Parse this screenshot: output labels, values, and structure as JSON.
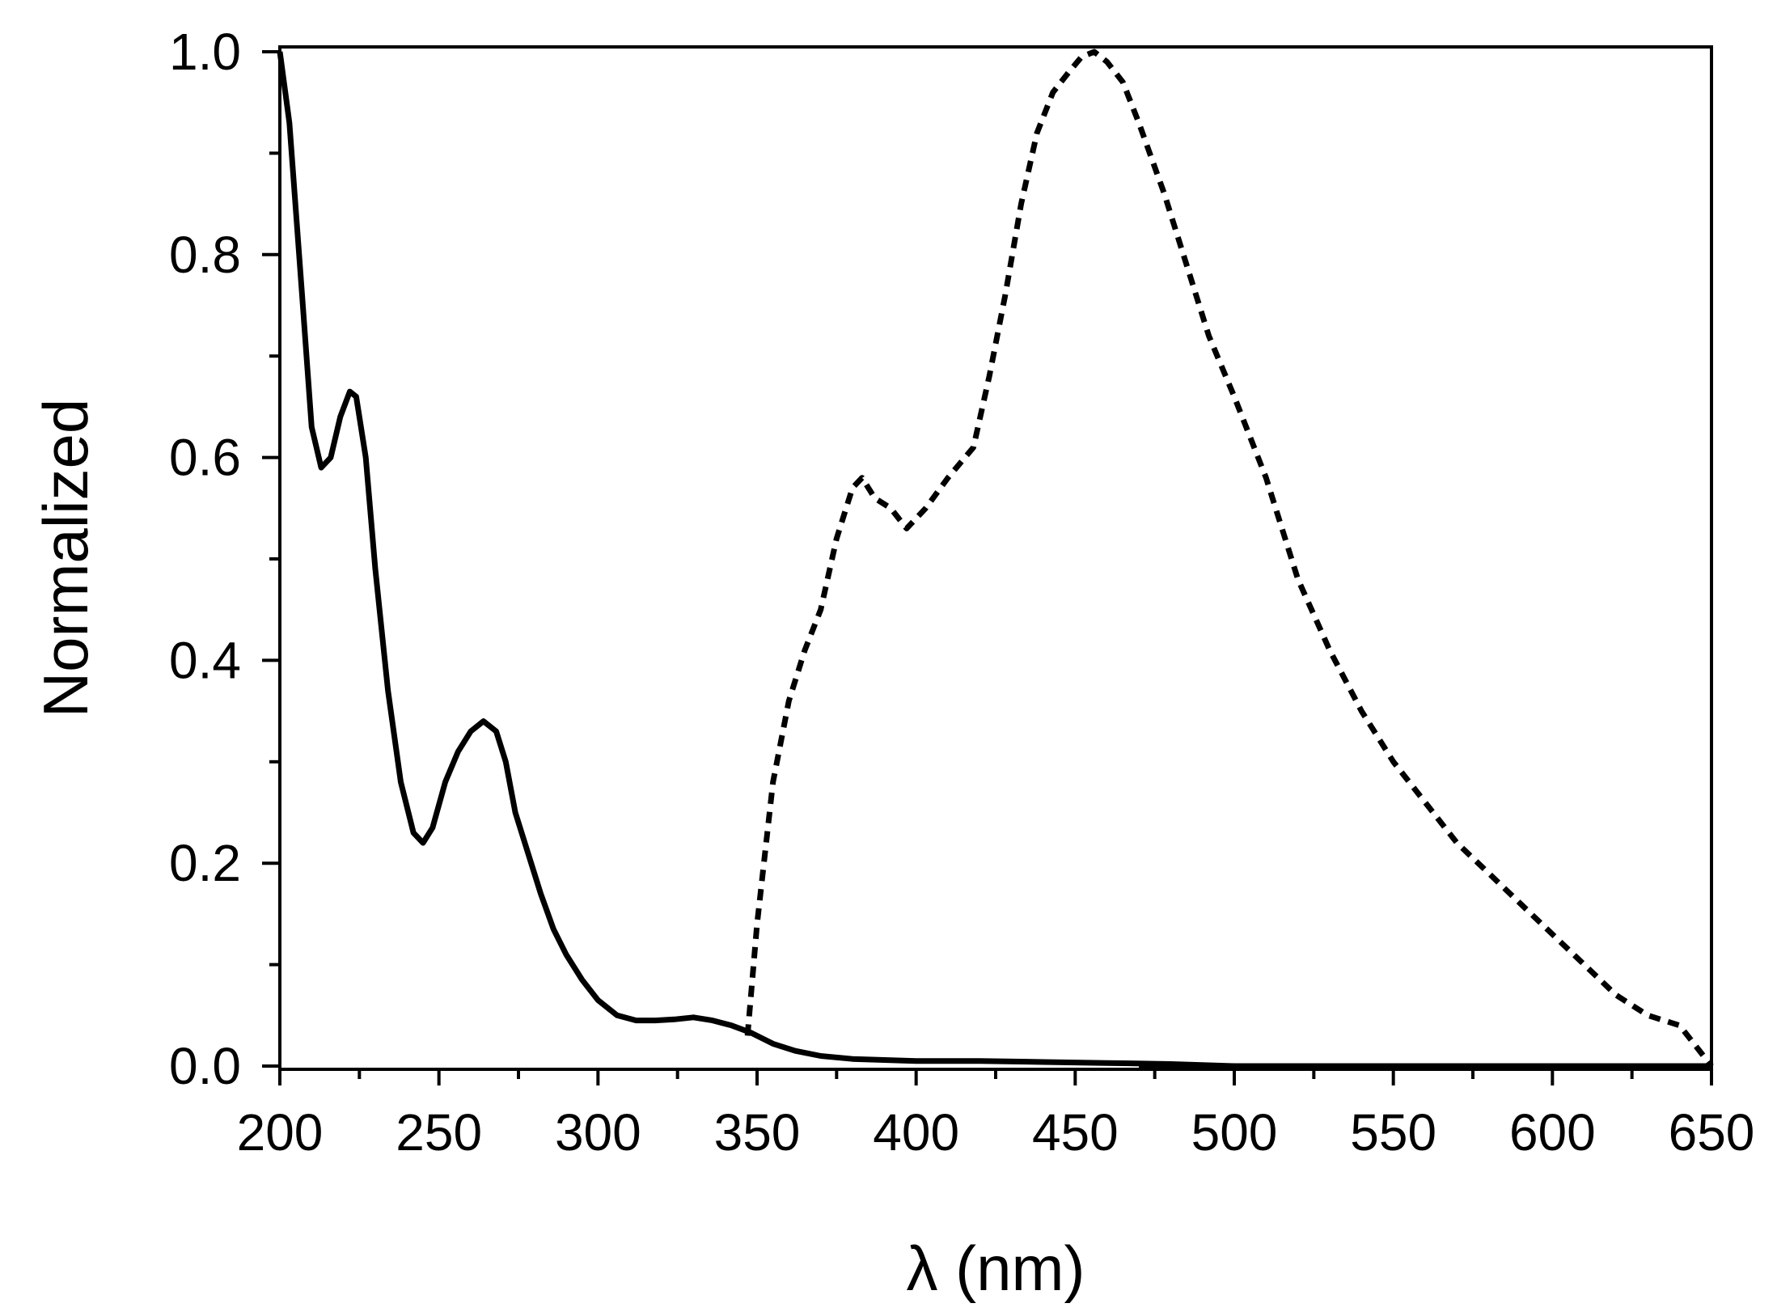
{
  "chart_data": {
    "type": "line",
    "title": "",
    "xlabel": "λ (nm)",
    "ylabel": "Normalized",
    "xlim": [
      200,
      650
    ],
    "ylim": [
      0.0,
      1.0
    ],
    "xticks": [
      200,
      250,
      300,
      350,
      400,
      450,
      500,
      550,
      600,
      650
    ],
    "yticks": [
      0.0,
      0.2,
      0.4,
      0.6,
      0.8,
      1.0
    ],
    "xtick_labels": [
      "200",
      "250",
      "300",
      "350",
      "400",
      "450",
      "500",
      "550",
      "600",
      "650"
    ],
    "ytick_labels": [
      "0.0",
      "0.2",
      "0.4",
      "0.6",
      "0.8",
      "1.0"
    ],
    "grid": false,
    "legend": "none",
    "series": [
      {
        "style": "solid",
        "color": "#000000",
        "x": [
          200,
          203,
          207,
          210,
          213,
          216,
          219,
          222,
          224,
          227,
          230,
          234,
          238,
          242,
          245,
          248,
          252,
          256,
          260,
          264,
          268,
          271,
          274,
          278,
          282,
          286,
          290,
          295,
          300,
          306,
          312,
          318,
          324,
          330,
          336,
          342,
          348,
          355,
          362,
          370,
          380,
          390,
          400,
          420,
          440,
          460,
          480,
          500,
          550,
          600,
          650
        ],
        "y": [
          1.0,
          0.93,
          0.76,
          0.63,
          0.59,
          0.6,
          0.64,
          0.665,
          0.66,
          0.6,
          0.49,
          0.37,
          0.28,
          0.23,
          0.22,
          0.235,
          0.28,
          0.31,
          0.33,
          0.34,
          0.33,
          0.3,
          0.25,
          0.21,
          0.17,
          0.135,
          0.11,
          0.085,
          0.065,
          0.05,
          0.045,
          0.045,
          0.046,
          0.048,
          0.045,
          0.04,
          0.033,
          0.022,
          0.015,
          0.01,
          0.007,
          0.006,
          0.005,
          0.005,
          0.004,
          0.003,
          0.002,
          0.0,
          0.0,
          0.0,
          0.0
        ]
      },
      {
        "style": "dashed",
        "color": "#000000",
        "x": [
          347,
          350,
          355,
          360,
          365,
          370,
          375,
          380,
          383,
          387,
          392,
          397,
          403,
          410,
          418,
          423,
          428,
          433,
          438,
          443,
          448,
          452,
          456,
          460,
          465,
          470,
          478,
          485,
          492,
          500,
          510,
          520,
          530,
          540,
          550,
          560,
          570,
          580,
          590,
          600,
          610,
          620,
          630,
          640,
          645,
          650
        ],
        "y": [
          0.03,
          0.14,
          0.28,
          0.36,
          0.41,
          0.45,
          0.52,
          0.57,
          0.58,
          0.56,
          0.55,
          0.53,
          0.55,
          0.58,
          0.61,
          0.68,
          0.76,
          0.85,
          0.92,
          0.96,
          0.98,
          0.995,
          1.0,
          0.99,
          0.97,
          0.93,
          0.86,
          0.79,
          0.72,
          0.66,
          0.58,
          0.48,
          0.41,
          0.35,
          0.3,
          0.26,
          0.22,
          0.19,
          0.16,
          0.13,
          0.1,
          0.07,
          0.05,
          0.04,
          0.02,
          0.0
        ]
      }
    ]
  }
}
